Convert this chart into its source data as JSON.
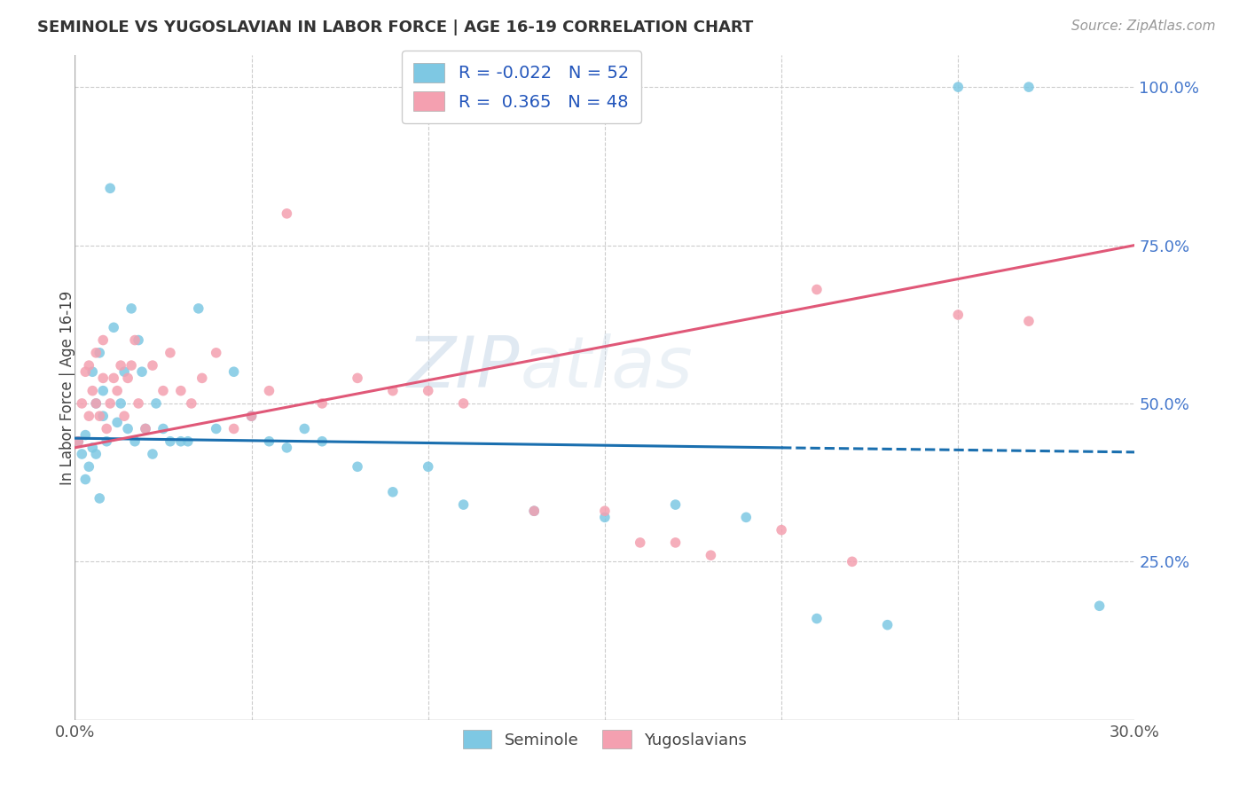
{
  "title": "SEMINOLE VS YUGOSLAVIAN IN LABOR FORCE | AGE 16-19 CORRELATION CHART",
  "source": "Source: ZipAtlas.com",
  "ylabel": "In Labor Force | Age 16-19",
  "xlim": [
    0.0,
    0.3
  ],
  "ylim": [
    0.0,
    1.05
  ],
  "ytick_positions": [
    0.25,
    0.5,
    0.75,
    1.0
  ],
  "seminole_R": "-0.022",
  "seminole_N": "52",
  "yugoslav_R": "0.365",
  "yugoslav_N": "48",
  "seminole_color": "#7ec8e3",
  "yugoslav_color": "#f4a0b0",
  "line_seminole_color": "#1a6faf",
  "line_yugoslav_color": "#e05878",
  "legend_label1": "Seminole",
  "legend_label2": "Yugoslavians",
  "seminole_x": [
    0.001,
    0.002,
    0.003,
    0.003,
    0.004,
    0.005,
    0.005,
    0.006,
    0.006,
    0.007,
    0.007,
    0.008,
    0.008,
    0.009,
    0.01,
    0.011,
    0.012,
    0.013,
    0.014,
    0.015,
    0.016,
    0.017,
    0.018,
    0.019,
    0.02,
    0.022,
    0.023,
    0.025,
    0.027,
    0.03,
    0.032,
    0.035,
    0.04,
    0.045,
    0.05,
    0.055,
    0.06,
    0.065,
    0.07,
    0.08,
    0.09,
    0.1,
    0.11,
    0.13,
    0.15,
    0.17,
    0.19,
    0.21,
    0.23,
    0.25,
    0.27,
    0.29
  ],
  "seminole_y": [
    0.44,
    0.42,
    0.45,
    0.38,
    0.4,
    0.55,
    0.43,
    0.5,
    0.42,
    0.58,
    0.35,
    0.48,
    0.52,
    0.44,
    0.84,
    0.62,
    0.47,
    0.5,
    0.55,
    0.46,
    0.65,
    0.44,
    0.6,
    0.55,
    0.46,
    0.42,
    0.5,
    0.46,
    0.44,
    0.44,
    0.44,
    0.65,
    0.46,
    0.55,
    0.48,
    0.44,
    0.43,
    0.46,
    0.44,
    0.4,
    0.36,
    0.4,
    0.34,
    0.33,
    0.32,
    0.34,
    0.32,
    0.16,
    0.15,
    1.0,
    1.0,
    0.18
  ],
  "yugoslav_x": [
    0.001,
    0.002,
    0.003,
    0.004,
    0.004,
    0.005,
    0.006,
    0.006,
    0.007,
    0.008,
    0.008,
    0.009,
    0.01,
    0.011,
    0.012,
    0.013,
    0.014,
    0.015,
    0.016,
    0.017,
    0.018,
    0.02,
    0.022,
    0.025,
    0.027,
    0.03,
    0.033,
    0.036,
    0.04,
    0.045,
    0.05,
    0.055,
    0.06,
    0.07,
    0.08,
    0.09,
    0.1,
    0.11,
    0.13,
    0.15,
    0.16,
    0.17,
    0.18,
    0.2,
    0.21,
    0.22,
    0.25,
    0.27
  ],
  "yugoslav_y": [
    0.44,
    0.5,
    0.55,
    0.48,
    0.56,
    0.52,
    0.5,
    0.58,
    0.48,
    0.54,
    0.6,
    0.46,
    0.5,
    0.54,
    0.52,
    0.56,
    0.48,
    0.54,
    0.56,
    0.6,
    0.5,
    0.46,
    0.56,
    0.52,
    0.58,
    0.52,
    0.5,
    0.54,
    0.58,
    0.46,
    0.48,
    0.52,
    0.8,
    0.5,
    0.54,
    0.52,
    0.52,
    0.5,
    0.33,
    0.33,
    0.28,
    0.28,
    0.26,
    0.3,
    0.68,
    0.25,
    0.64,
    0.63
  ],
  "line_seminole_x0": 0.0,
  "line_seminole_y0": 0.445,
  "line_seminole_x1": 0.2,
  "line_seminole_y1": 0.43,
  "line_seminole_x2": 0.3,
  "line_seminole_y2": 0.423,
  "line_yugoslav_x0": 0.0,
  "line_yugoslav_y0": 0.43,
  "line_yugoslav_x1": 0.3,
  "line_yugoslav_y1": 0.75
}
